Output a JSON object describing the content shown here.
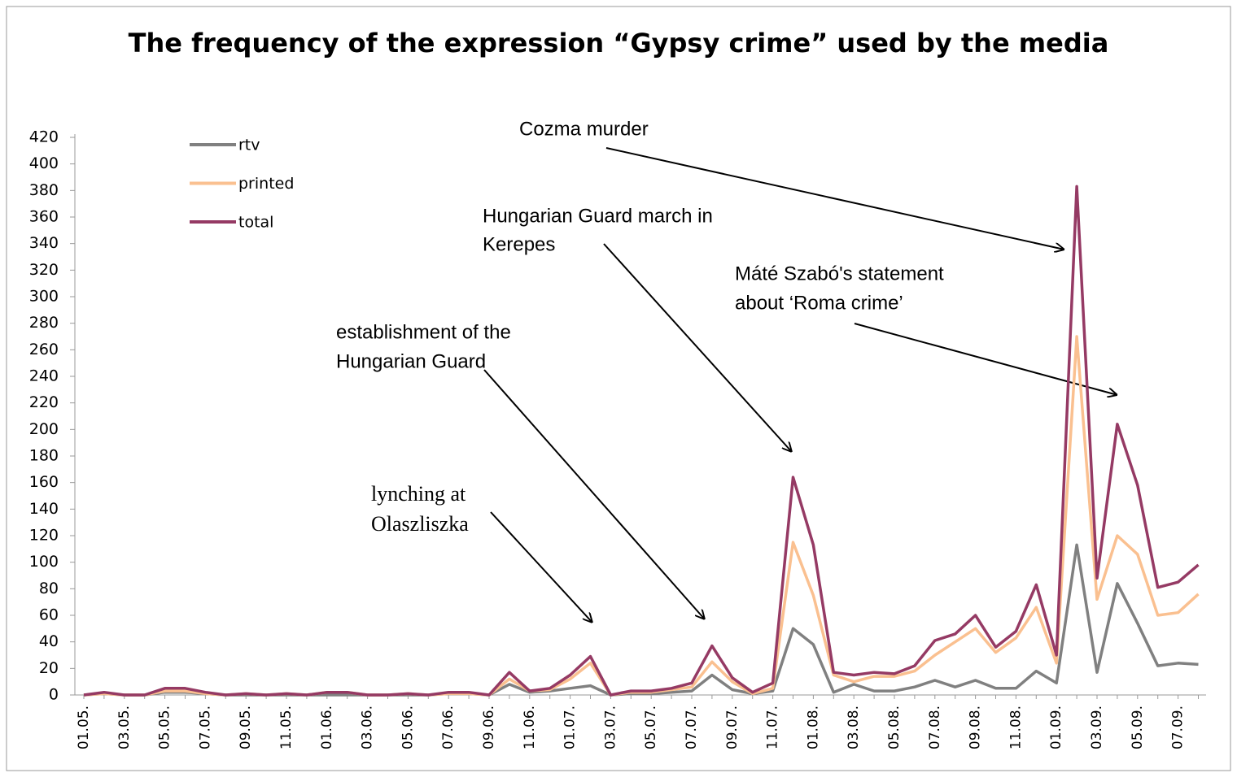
{
  "chart_data": {
    "type": "line",
    "title": "The frequency of the expression “Gypsy crime” used by the media",
    "categories": [
      "01.05.",
      null,
      "03.05.",
      null,
      "05.05.",
      null,
      "07.05.",
      null,
      "09.05.",
      null,
      "11.05.",
      null,
      "01.06.",
      null,
      "03.06.",
      null,
      "05.06.",
      null,
      "07.06.",
      null,
      "09.06.",
      null,
      "11.06.",
      null,
      "01.07.",
      null,
      "03.07.",
      null,
      "05.07.",
      null,
      "07.07.",
      null,
      "09.07.",
      null,
      "11.07.",
      null,
      "01.08.",
      null,
      "03.08.",
      null,
      "05.08.",
      null,
      "07.08.",
      null,
      "09.08.",
      null,
      "11.08.",
      null,
      "01.09.",
      null,
      "03.09.",
      null,
      "05.09.",
      null,
      "07.09.",
      null
    ],
    "series": [
      {
        "name": "rtv",
        "color": "#808080",
        "values": [
          0,
          1,
          0,
          0,
          2,
          2,
          1,
          0,
          0,
          0,
          0,
          0,
          0,
          0,
          0,
          0,
          0,
          0,
          1,
          1,
          0,
          8,
          2,
          3,
          5,
          7,
          0,
          1,
          1,
          2,
          3,
          15,
          4,
          1,
          3,
          50,
          38,
          2,
          8,
          3,
          3,
          6,
          11,
          6,
          11,
          5,
          5,
          18,
          9,
          113,
          17,
          84,
          54,
          22,
          24,
          23
        ]
      },
      {
        "name": "printed",
        "color": "#fac090",
        "values": [
          0,
          1,
          0,
          0,
          3,
          3,
          1,
          0,
          1,
          0,
          1,
          0,
          2,
          2,
          0,
          0,
          1,
          0,
          1,
          1,
          0,
          12,
          3,
          4,
          12,
          24,
          0,
          2,
          2,
          4,
          6,
          25,
          10,
          1,
          5,
          115,
          75,
          15,
          10,
          14,
          14,
          18,
          30,
          40,
          50,
          32,
          43,
          66,
          24,
          270,
          72,
          120,
          106,
          60,
          62,
          76
        ]
      },
      {
        "name": "total",
        "color": "#953a64",
        "values": [
          0,
          2,
          0,
          0,
          5,
          5,
          2,
          0,
          1,
          0,
          1,
          0,
          2,
          2,
          0,
          0,
          1,
          0,
          2,
          2,
          0,
          17,
          3,
          5,
          15,
          29,
          0,
          3,
          3,
          5,
          9,
          37,
          13,
          2,
          9,
          164,
          113,
          17,
          15,
          17,
          16,
          22,
          41,
          46,
          60,
          36,
          48,
          83,
          30,
          383,
          88,
          204,
          158,
          81,
          85,
          98
        ]
      }
    ],
    "ylim": [
      0,
      420
    ],
    "yticks": [
      0,
      20,
      40,
      60,
      80,
      100,
      120,
      140,
      160,
      180,
      200,
      220,
      240,
      260,
      280,
      300,
      320,
      340,
      360,
      380,
      400,
      420
    ],
    "annotations": [
      {
        "lines": [
          "Cozma murder"
        ]
      },
      {
        "lines": [
          "Hungarian Guard march in",
          "Kerepes"
        ]
      },
      {
        "lines": [
          "Máté Szabó's statement",
          "about ‘Roma crime’"
        ]
      },
      {
        "lines": [
          "establishment of the",
          "Hungarian Guard"
        ]
      },
      {
        "lines": [
          "lynching   at",
          "Olaszliszka"
        ]
      }
    ]
  }
}
